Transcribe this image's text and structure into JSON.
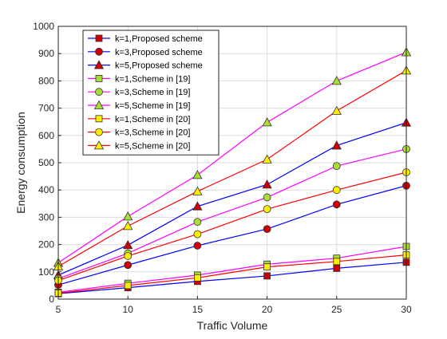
{
  "chart_data": {
    "type": "line",
    "xlabel": "Traffic Volume",
    "ylabel": "Energy consumption",
    "xlim": [
      5,
      30
    ],
    "ylim": [
      0,
      1000
    ],
    "xticks": [
      5,
      10,
      15,
      20,
      25,
      30
    ],
    "yticks": [
      0,
      100,
      200,
      300,
      400,
      500,
      600,
      700,
      800,
      900,
      1000
    ],
    "grid": true,
    "legend_position": "top-left",
    "x": [
      5,
      10,
      15,
      20,
      25,
      30
    ],
    "series": [
      {
        "name": "k=1,Proposed scheme",
        "color": "#0000ff",
        "marker": "square",
        "markerFill": "#cc0000",
        "values": [
          20,
          42,
          65,
          85,
          113,
          135
        ]
      },
      {
        "name": "k=3,Proposed scheme",
        "color": "#0000ff",
        "marker": "circle",
        "markerFill": "#cc0000",
        "values": [
          52,
          125,
          196,
          257,
          347,
          416
        ]
      },
      {
        "name": "k=5,Proposed scheme",
        "color": "#0000ff",
        "marker": "triangle",
        "markerFill": "#cc0000",
        "values": [
          88,
          198,
          340,
          420,
          563,
          647
        ]
      },
      {
        "name": "k=1,Scheme in [19]",
        "color": "#ff00ff",
        "marker": "square",
        "markerFill": "#aadd33",
        "values": [
          25,
          58,
          88,
          128,
          150,
          193
        ]
      },
      {
        "name": "k=3,Scheme in [19]",
        "color": "#ff00ff",
        "marker": "circle",
        "markerFill": "#aadd33",
        "values": [
          75,
          168,
          283,
          373,
          488,
          550
        ]
      },
      {
        "name": "k=5,Scheme in [19]",
        "color": "#ff00ff",
        "marker": "triangle",
        "markerFill": "#aadd33",
        "values": [
          133,
          303,
          455,
          648,
          800,
          905
        ]
      },
      {
        "name": "k=1,Scheme in [20]",
        "color": "#ff0000",
        "marker": "square",
        "markerFill": "#ffee00",
        "values": [
          22,
          50,
          78,
          118,
          138,
          162
        ]
      },
      {
        "name": "k=3,Scheme in [20]",
        "color": "#ff0000",
        "marker": "circle",
        "markerFill": "#ffee00",
        "values": [
          68,
          158,
          238,
          330,
          400,
          465
        ]
      },
      {
        "name": "k=5,Scheme in [20]",
        "color": "#ff0000",
        "marker": "triangle",
        "markerFill": "#ffee00",
        "values": [
          120,
          268,
          395,
          512,
          690,
          838
        ]
      }
    ]
  }
}
